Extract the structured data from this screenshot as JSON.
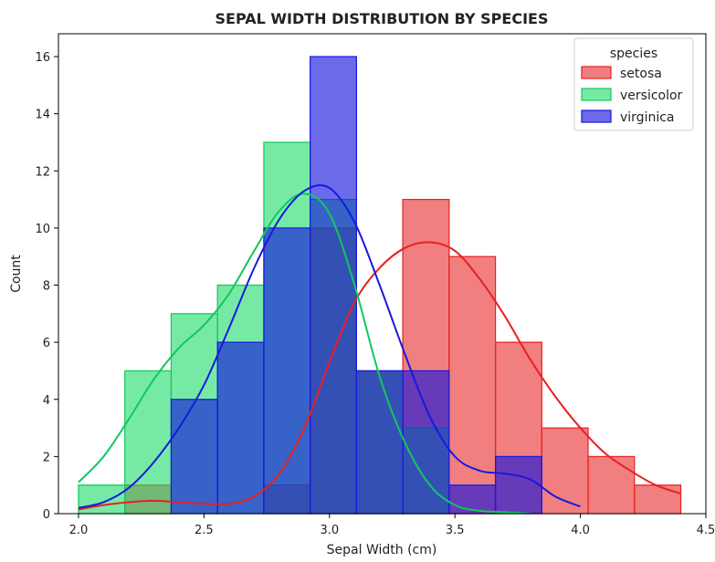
{
  "chart_data": {
    "type": "histogram",
    "title": "SEPAL WIDTH DISTRIBUTION BY SPECIES",
    "xlabel": "Sepal Width (cm)",
    "ylabel": "Count",
    "xlim": [
      1.92,
      4.5
    ],
    "ylim": [
      0,
      16.8
    ],
    "xticks": [
      2.0,
      2.5,
      3.0,
      3.5,
      4.0,
      4.5
    ],
    "xtick_labels": [
      "2.0",
      "2.5",
      "3.0",
      "3.5",
      "4.0",
      "4.5"
    ],
    "yticks": [
      0,
      2,
      4,
      6,
      8,
      10,
      12,
      14,
      16
    ],
    "ytick_labels": [
      "0",
      "2",
      "4",
      "6",
      "8",
      "10",
      "12",
      "14",
      "16"
    ],
    "bin_edges": [
      2.0,
      2.1846,
      2.3692,
      2.5538,
      2.7385,
      2.9231,
      3.1077,
      3.2923,
      3.4769,
      3.6615,
      3.8462,
      4.0308,
      4.2154,
      4.4
    ],
    "legend_title": "species",
    "legend_position": "upper right",
    "series": [
      {
        "name": "setosa",
        "fill": "#e83030",
        "edge": "#e82020",
        "counts": [
          0,
          1,
          0,
          0,
          1,
          10,
          5,
          11,
          9,
          6,
          3,
          2,
          1
        ],
        "kde_x": [
          2.0,
          2.1,
          2.2,
          2.3,
          2.4,
          2.5,
          2.6,
          2.7,
          2.8,
          2.9,
          3.0,
          3.1,
          3.2,
          3.3,
          3.4,
          3.5,
          3.6,
          3.7,
          3.8,
          3.9,
          4.0,
          4.1,
          4.2,
          4.3,
          4.4
        ],
        "kde_y": [
          0.15,
          0.3,
          0.4,
          0.45,
          0.4,
          0.35,
          0.35,
          0.6,
          1.4,
          3.0,
          5.3,
          7.4,
          8.6,
          9.3,
          9.5,
          9.2,
          8.2,
          6.9,
          5.4,
          4.1,
          3.0,
          2.1,
          1.5,
          1.0,
          0.7
        ]
      },
      {
        "name": "versicolor",
        "fill": "#22dd6e",
        "edge": "#10c85c",
        "counts": [
          1,
          5,
          7,
          8,
          13,
          11,
          5,
          3,
          0,
          0,
          0,
          0,
          0
        ],
        "kde_x": [
          2.0,
          2.1,
          2.2,
          2.3,
          2.4,
          2.5,
          2.6,
          2.7,
          2.8,
          2.9,
          3.0,
          3.1,
          3.2,
          3.3,
          3.4,
          3.5,
          3.6,
          3.7,
          3.8
        ],
        "kde_y": [
          1.1,
          2.0,
          3.3,
          4.7,
          5.8,
          6.6,
          7.7,
          9.2,
          10.6,
          11.2,
          10.5,
          8.0,
          4.8,
          2.5,
          1.0,
          0.3,
          0.1,
          0.05,
          0.0
        ],
        "kde_x_max": 3.8
      },
      {
        "name": "virginica",
        "fill": "#1010dd",
        "edge": "#1818e0",
        "counts": [
          0,
          0,
          4,
          6,
          10,
          16,
          5,
          5,
          1,
          2,
          0,
          0,
          0
        ],
        "kde_x": [
          2.0,
          2.1,
          2.2,
          2.3,
          2.4,
          2.5,
          2.6,
          2.7,
          2.8,
          2.9,
          3.0,
          3.1,
          3.2,
          3.3,
          3.4,
          3.5,
          3.6,
          3.7,
          3.8,
          3.9,
          4.0
        ],
        "kde_y": [
          0.2,
          0.4,
          0.9,
          1.8,
          3.0,
          4.5,
          6.5,
          8.6,
          10.3,
          11.3,
          11.4,
          10.2,
          8.0,
          5.6,
          3.4,
          2.0,
          1.5,
          1.4,
          1.2,
          0.6,
          0.25
        ],
        "kde_x_max": 4.0
      }
    ]
  }
}
